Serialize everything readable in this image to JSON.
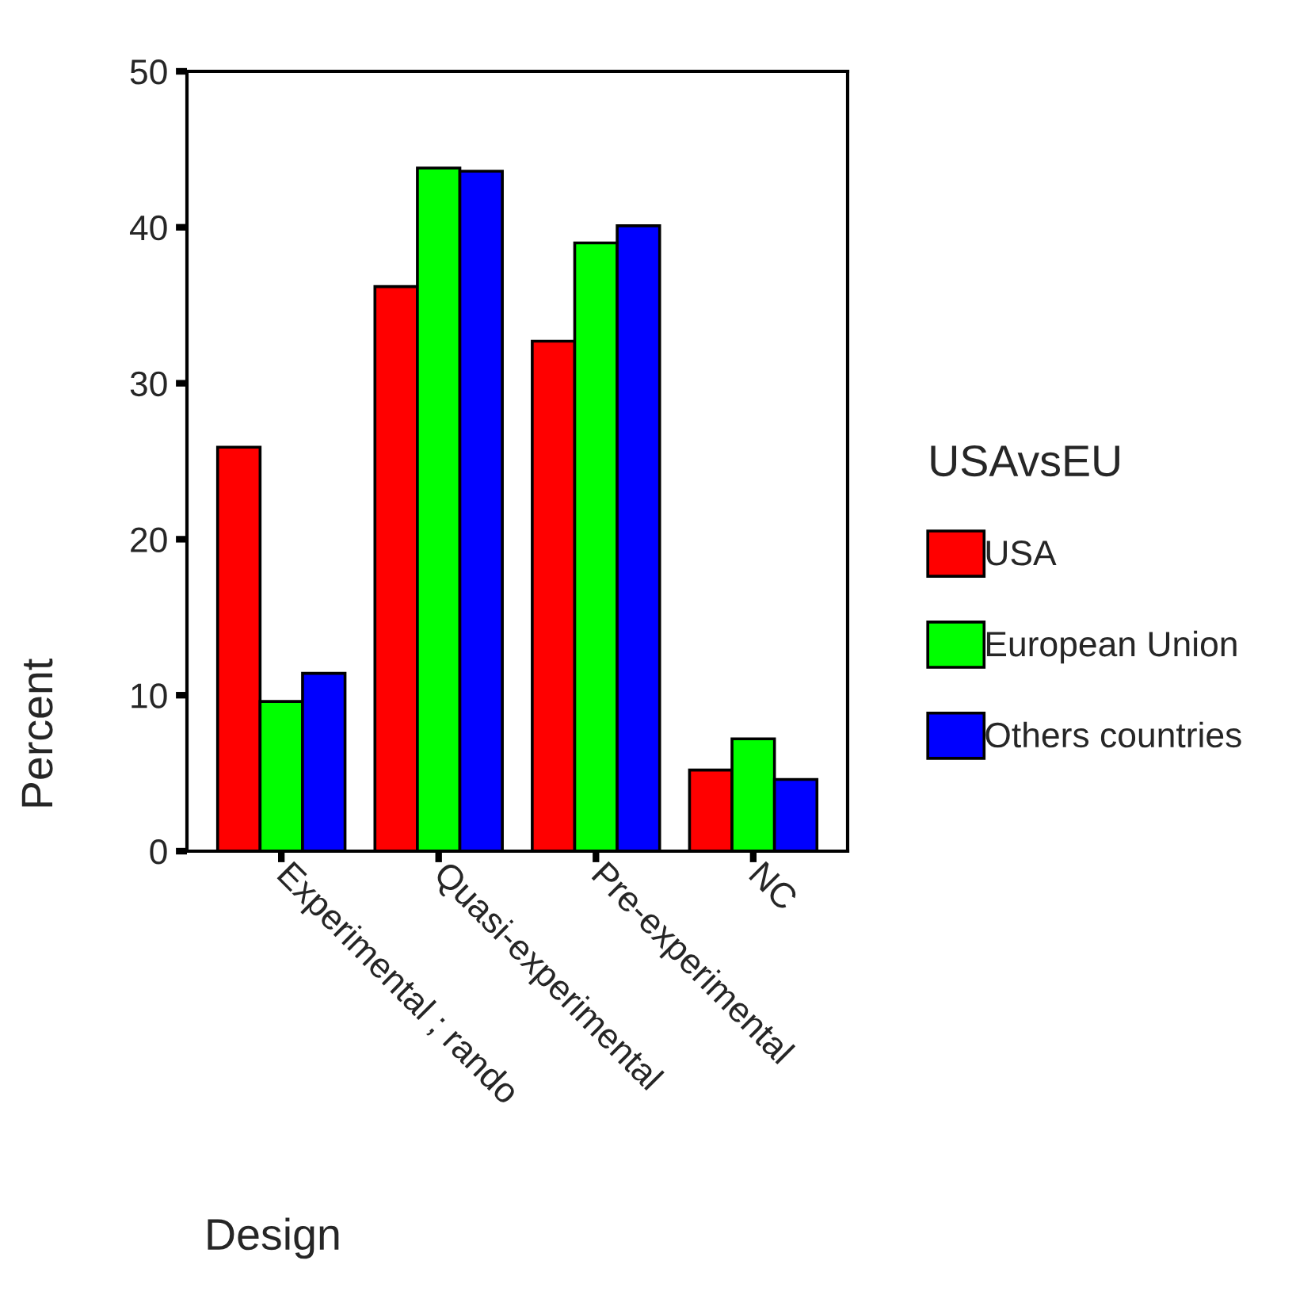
{
  "chart_data": {
    "type": "bar",
    "xlabel": "Design",
    "ylabel": "Percent",
    "legend_title": "USAvsEU",
    "categories": [
      "Experimental ; rando",
      "Quasi-experimental",
      "Pre-experimental",
      "NC"
    ],
    "series": [
      {
        "name": "USA",
        "color": "#ff0000",
        "values": [
          25.9,
          36.2,
          32.7,
          5.2
        ]
      },
      {
        "name": "European Union",
        "color": "#00ff00",
        "values": [
          9.6,
          43.8,
          39.0,
          7.2
        ]
      },
      {
        "name": "Others countries",
        "color": "#0000ff",
        "values": [
          11.4,
          43.6,
          40.1,
          4.6
        ]
      }
    ],
    "ylim": [
      0,
      50
    ],
    "yticks": [
      0,
      10,
      20,
      30,
      40,
      50
    ],
    "grid": false,
    "legend": "right"
  }
}
